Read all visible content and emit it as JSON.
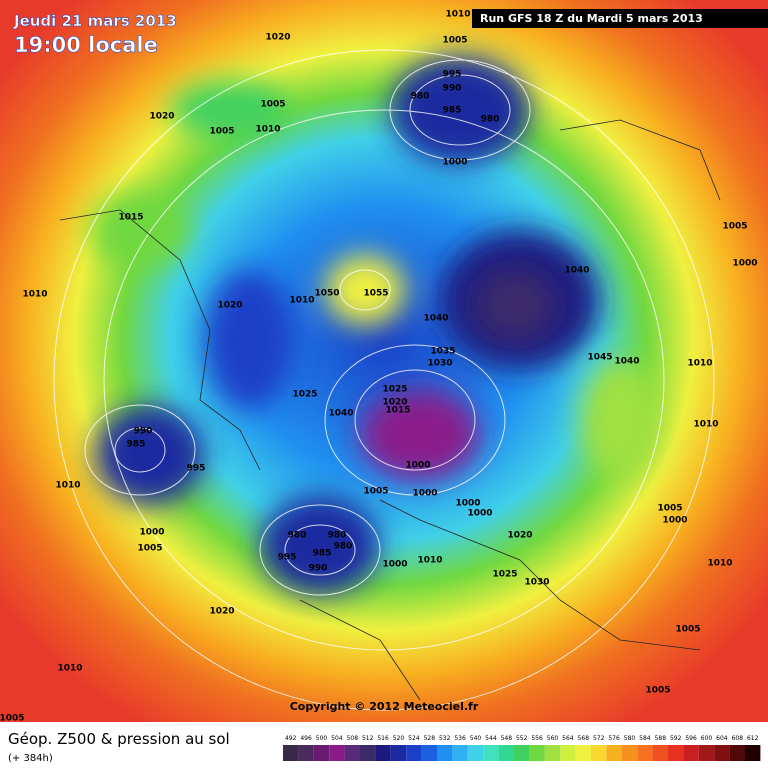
{
  "header": {
    "date": "Jeudi 21 mars 2013",
    "time": "19:00 locale",
    "run": "Run GFS 18 Z du Mardi 5 mars 2013"
  },
  "map": {
    "copyright": "Copyright © 2012 Meteociel.fr",
    "isobar_labels": [
      "1010",
      "1005",
      "1020",
      "995",
      "990",
      "980",
      "985",
      "980",
      "1005",
      "1005",
      "1010",
      "1020",
      "1000",
      "1015",
      "1010",
      "1020",
      "1010",
      "1050",
      "1055",
      "1040",
      "1040",
      "1005",
      "1000",
      "1035",
      "1030",
      "1045",
      "1040",
      "1010",
      "1025",
      "1025",
      "1020",
      "1015",
      "1040",
      "1010",
      "990",
      "985",
      "995",
      "1000",
      "1010",
      "1005",
      "1000",
      "1000",
      "1000",
      "1005",
      "1000",
      "980",
      "980",
      "980",
      "985",
      "995",
      "990",
      "1000",
      "1005",
      "1020",
      "1000",
      "1010",
      "1025",
      "1030",
      "1010",
      "1020",
      "1005",
      "1010",
      "1005",
      "1005"
    ]
  },
  "footer": {
    "title": "Géop. Z500 & pression au sol",
    "lead": "(+ 384h)"
  },
  "legend": {
    "ticks": [
      492,
      496,
      500,
      504,
      508,
      512,
      516,
      520,
      524,
      528,
      532,
      536,
      540,
      544,
      548,
      552,
      556,
      560,
      564,
      568,
      572,
      576,
      580,
      584,
      588,
      592,
      596,
      600,
      604,
      608,
      612
    ],
    "colors": [
      "#3a2a4a",
      "#4b2a5e",
      "#6a1a70",
      "#8a1a8a",
      "#5a2a7a",
      "#3a2a6a",
      "#1a1a80",
      "#1a2aa0",
      "#1a40c8",
      "#1a60e0",
      "#2090f0",
      "#30b0f0",
      "#40d0e8",
      "#40e0c0",
      "#30d890",
      "#40d060",
      "#70d840",
      "#a0e040",
      "#d0f040",
      "#f0f040",
      "#f8d830",
      "#f8b020",
      "#f89020",
      "#f87020",
      "#f05020",
      "#e83020",
      "#c82020",
      "#a01818",
      "#801010",
      "#500808",
      "#200000"
    ]
  }
}
